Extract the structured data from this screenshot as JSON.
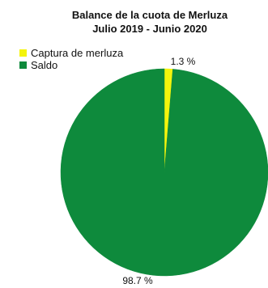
{
  "chart_data": {
    "type": "pie",
    "title": [
      "Balance de la cuota de Merluza",
      "Julio 2019 - Junio 2020"
    ],
    "legend_position": "top-left",
    "slices": [
      {
        "label": "Captura de merluza",
        "value": 1.3,
        "value_label": "1.3 %",
        "color": "#f4f40c"
      },
      {
        "label": "Saldo",
        "value": 98.7,
        "value_label": "98.7 %",
        "color": "#0e8a3c"
      }
    ]
  }
}
